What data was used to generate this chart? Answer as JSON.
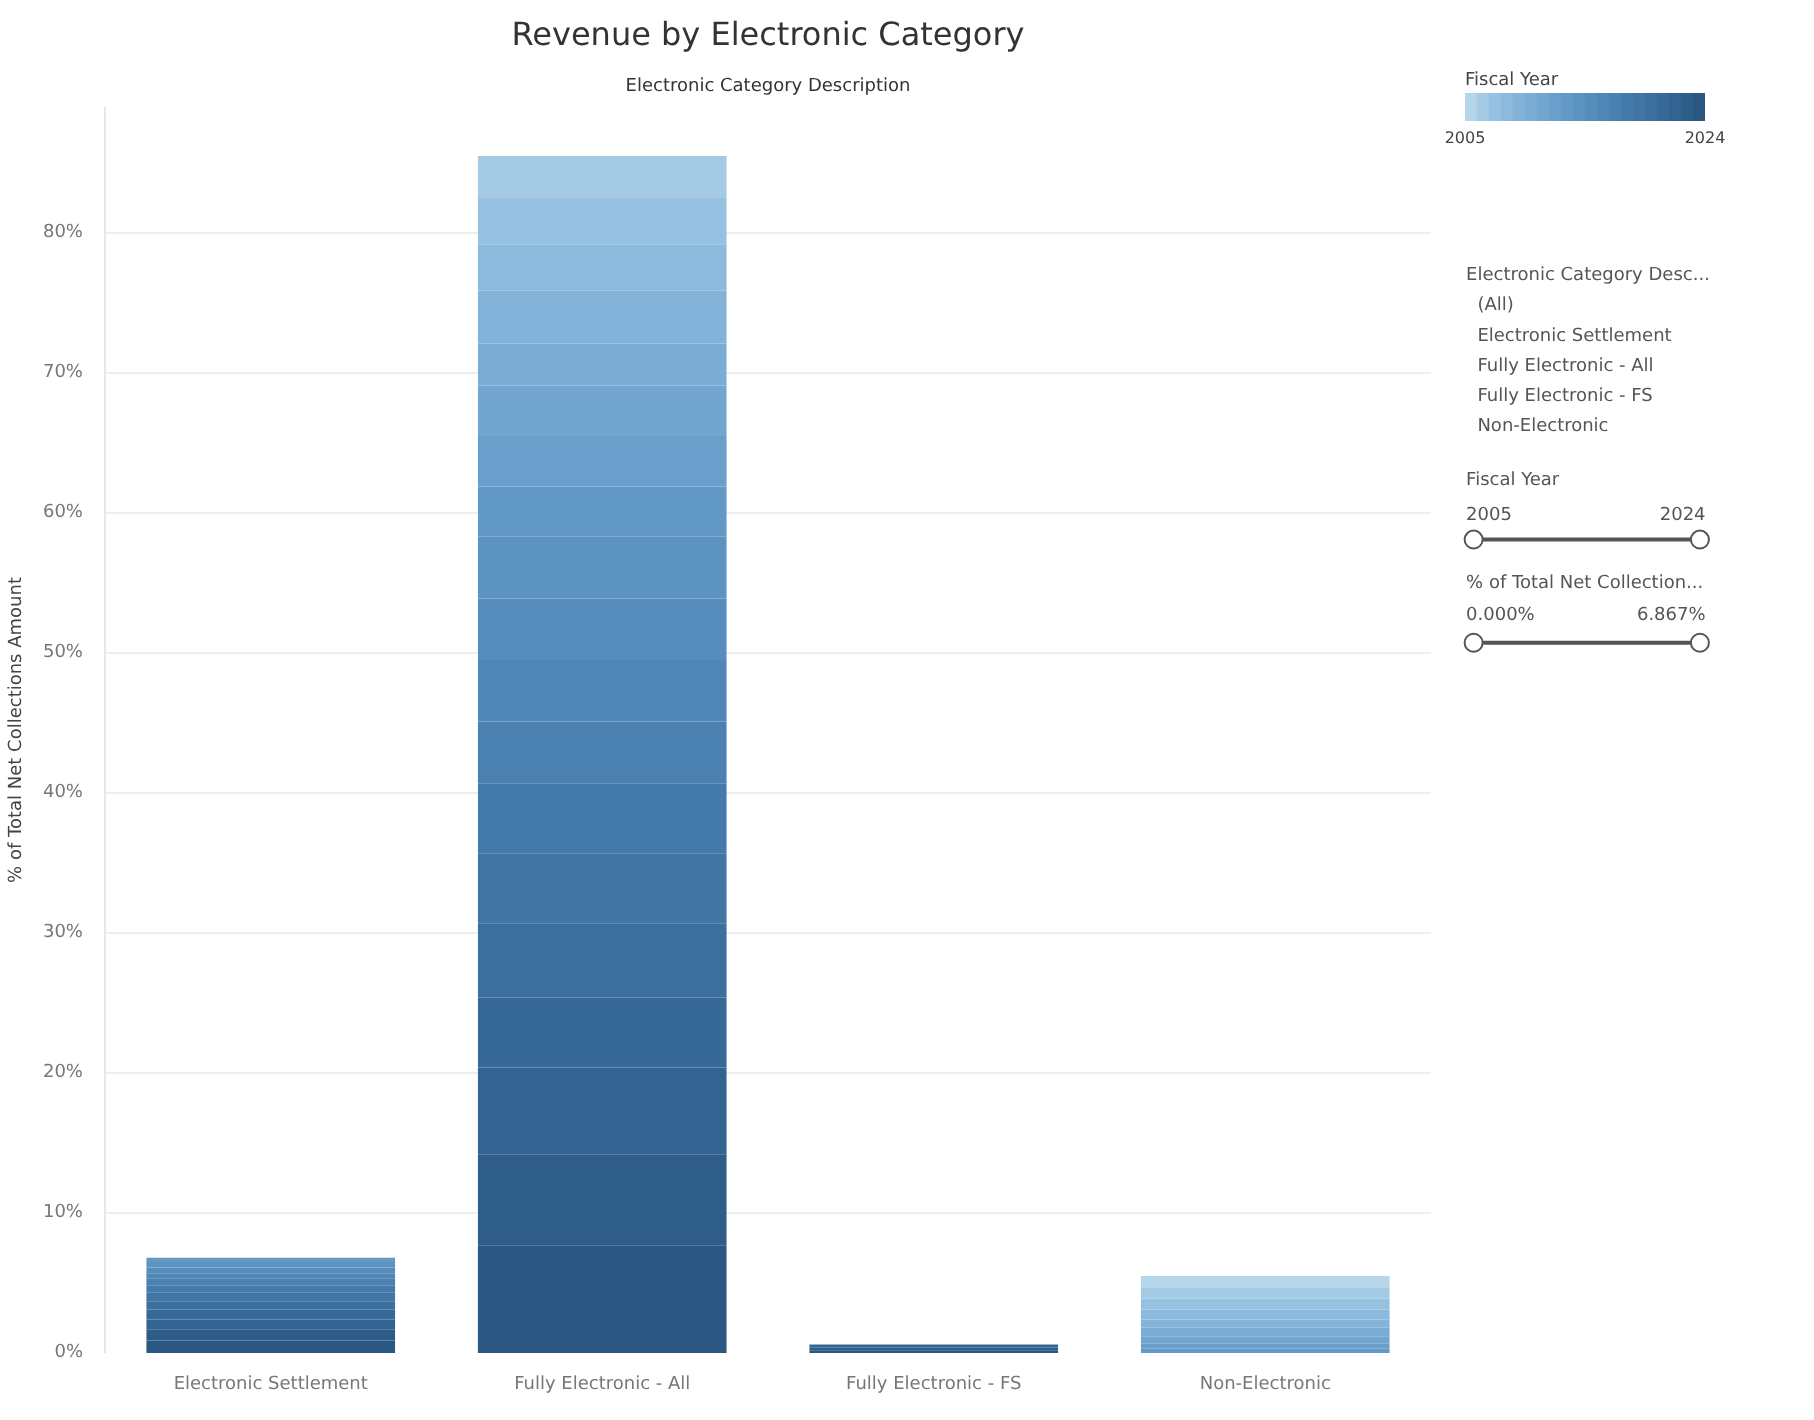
{
  "chart_data": {
    "type": "bar",
    "stacked": true,
    "title": "Revenue by Electronic Category",
    "subtitle": "Electronic Category Description",
    "ylabel": "% of Total Net Collections Amount",
    "categories": [
      "Electronic Settlement",
      "Fully Electronic - All",
      "Fully Electronic - FS",
      "Non-Electronic"
    ],
    "series": [
      {
        "color": "#2a5783",
        "values": [
          0.9,
          7.7,
          0.2,
          null
        ]
      },
      {
        "color": "#2e5d8a",
        "values": [
          0.8,
          6.5,
          0.2,
          null
        ]
      },
      {
        "color": "#336391",
        "values": [
          0.7,
          6.2,
          0.1,
          null
        ]
      },
      {
        "color": "#376998",
        "values": [
          0.7,
          5.0,
          0.1,
          null
        ]
      },
      {
        "color": "#3b6f9e",
        "values": [
          0.6,
          5.3,
          null,
          null
        ]
      },
      {
        "color": "#4075a4",
        "values": [
          0.6,
          5.0,
          null,
          null
        ]
      },
      {
        "color": "#457baa",
        "values": [
          0.5,
          5.0,
          null,
          null
        ]
      },
      {
        "color": "#4a81b0",
        "values": [
          0.5,
          4.4,
          null,
          null
        ]
      },
      {
        "color": "#5087b6",
        "values": [
          0.4,
          4.4,
          null,
          null
        ]
      },
      {
        "color": "#568dbc",
        "values": [
          0.4,
          4.4,
          null,
          null
        ]
      },
      {
        "color": "#5c93c1",
        "values": [
          0.4,
          4.4,
          null,
          null
        ]
      },
      {
        "color": "#6399c6",
        "values": [
          0.3,
          3.6,
          null,
          0.3
        ]
      },
      {
        "color": "#6a9fcb",
        "values": [
          null,
          3.6,
          null,
          0.4
        ]
      },
      {
        "color": "#72a6d0",
        "values": [
          null,
          3.6,
          null,
          0.5
        ]
      },
      {
        "color": "#7aacd4",
        "values": [
          null,
          3.0,
          null,
          0.6
        ]
      },
      {
        "color": "#83b3d8",
        "values": [
          null,
          3.8,
          null,
          0.6
        ]
      },
      {
        "color": "#8cbadc",
        "values": [
          null,
          3.3,
          null,
          0.7
        ]
      },
      {
        "color": "#97c1e0",
        "values": [
          null,
          3.3,
          null,
          0.8
        ]
      },
      {
        "color": "#a4cae4",
        "values": [
          null,
          3.0,
          null,
          0.8
        ]
      },
      {
        "color": "#b4d5ea",
        "values": [
          null,
          null,
          null,
          0.8
        ]
      }
    ],
    "ylim": [
      0,
      89
    ],
    "yticks": [
      {
        "value": 0,
        "label": "0%"
      },
      {
        "value": 10,
        "label": "10%"
      },
      {
        "value": 20,
        "label": "20%"
      },
      {
        "value": 30,
        "label": "30%"
      },
      {
        "value": 40,
        "label": "40%"
      },
      {
        "value": 50,
        "label": "50%"
      },
      {
        "value": 60,
        "label": "60%"
      },
      {
        "value": 70,
        "label": "70%"
      },
      {
        "value": 80,
        "label": "80%"
      }
    ],
    "grid": "y",
    "clabel": "Fiscal Year",
    "clim": [
      2005,
      2024
    ],
    "cticks": [
      2005,
      2024
    ],
    "annotations": [
      "Electronic Category Desc...",
      "(All)",
      "Electronic Settlement",
      "Fully Electronic - All",
      "Fully Electronic - FS",
      "Non-Electronic",
      "Fiscal Year",
      "2005",
      "2024",
      "% of Total Net Collection...",
      "0.000%",
      "6.867%"
    ]
  }
}
